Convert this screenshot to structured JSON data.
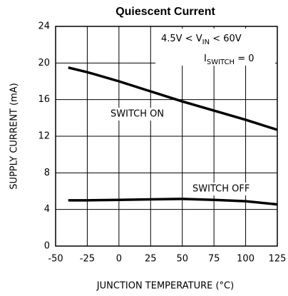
{
  "chart_data": {
    "type": "line",
    "title": "Quiescent Current",
    "xlabel": "JUNCTION TEMPERATURE (°C)",
    "ylabel": "SUPPLY CURRENT (mA)",
    "x": [
      -40,
      -25,
      0,
      25,
      50,
      75,
      100,
      125
    ],
    "series": [
      {
        "name": "SWITCH ON",
        "color": "#000000",
        "values": [
          19.5,
          19.0,
          18.0,
          16.9,
          15.8,
          14.8,
          13.8,
          12.7
        ]
      },
      {
        "name": "SWITCH OFF",
        "color": "#000000",
        "values": [
          5.0,
          5.0,
          5.05,
          5.1,
          5.15,
          5.05,
          4.9,
          4.55
        ]
      }
    ],
    "annotations": [
      {
        "text": "4.5V < V",
        "sub": "IN",
        "rest": " < 60V"
      },
      {
        "text": "I",
        "sub": "SWITCH",
        "rest": " = 0"
      }
    ],
    "xlim": [
      -50,
      125
    ],
    "xticks": [
      -50,
      -25,
      0,
      25,
      50,
      75,
      100,
      125
    ],
    "ylim": [
      0,
      24
    ],
    "yticks": [
      0,
      4,
      8,
      12,
      16,
      20,
      24
    ],
    "grid": true
  }
}
